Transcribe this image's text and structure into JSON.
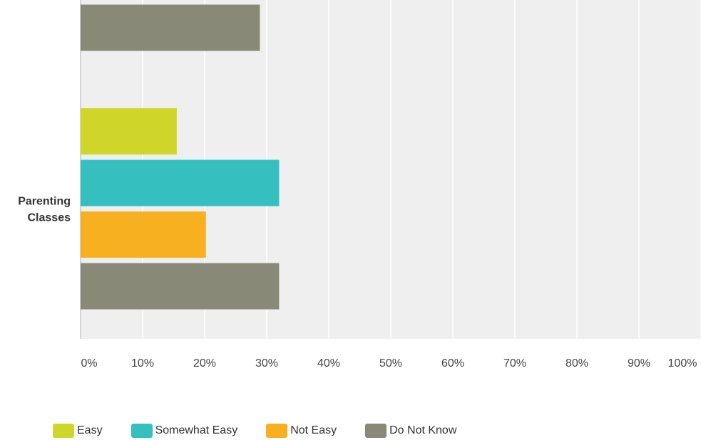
{
  "chart_data": {
    "type": "bar",
    "orientation": "horizontal",
    "categories": [
      "",
      "Parenting Classes"
    ],
    "series": [
      {
        "name": "Easy",
        "color": "#D0D629",
        "values": [
          null,
          15.5
        ]
      },
      {
        "name": "Somewhat Easy",
        "color": "#35BFBF",
        "values": [
          null,
          32.0
        ]
      },
      {
        "name": "Not Easy",
        "color": "#F6B020",
        "values": [
          null,
          20.2
        ]
      },
      {
        "name": "Do Not Know",
        "color": "#888A77",
        "values": [
          28.9,
          32.0
        ]
      }
    ],
    "x_ticks": [
      "0%",
      "10%",
      "20%",
      "30%",
      "40%",
      "50%",
      "60%",
      "70%",
      "80%",
      "90%",
      "100%"
    ],
    "xlim": [
      0,
      100
    ],
    "grid": true,
    "legend_position": "bottom-left",
    "title": "",
    "xlabel": "",
    "ylabel": ""
  }
}
